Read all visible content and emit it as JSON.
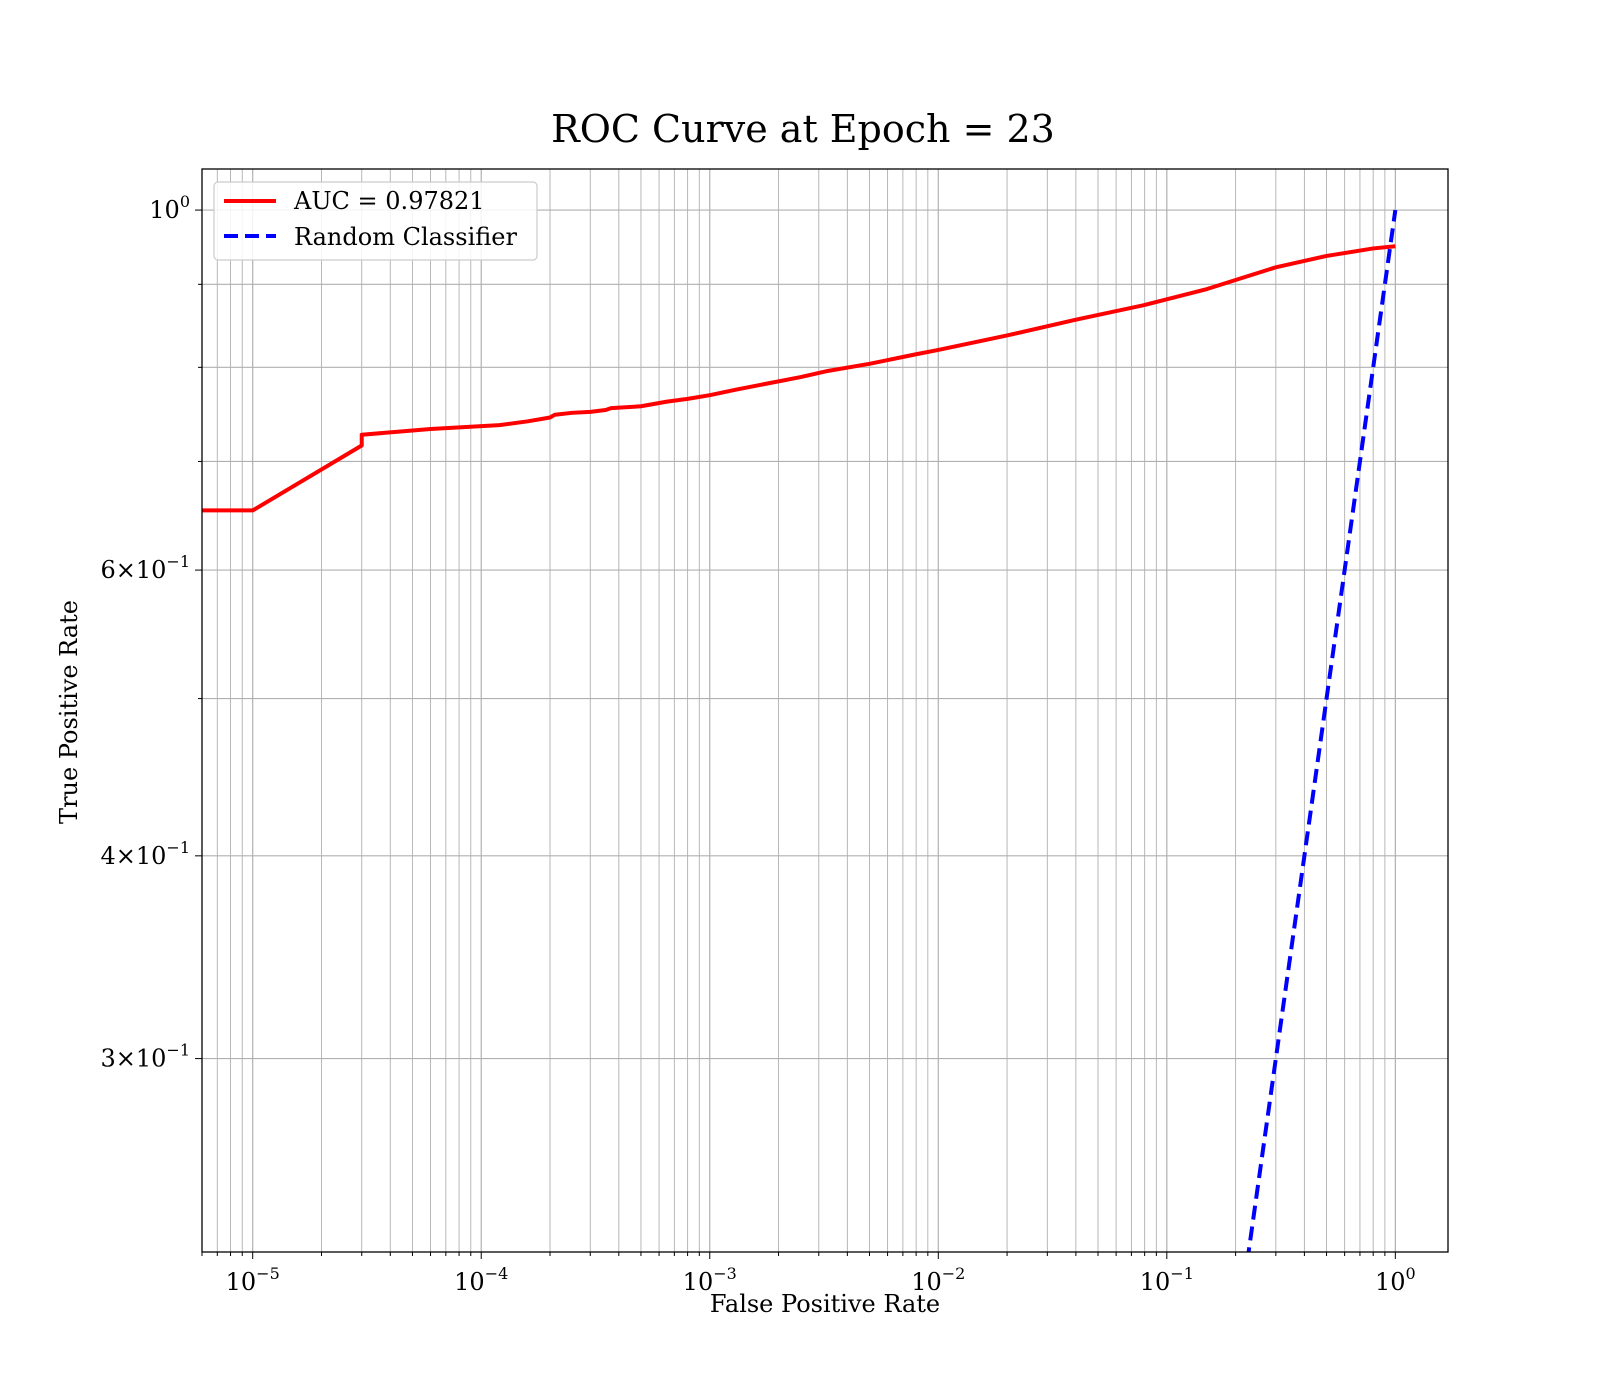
{
  "chart_data": {
    "type": "line",
    "title": "ROC Curve at Epoch = 23",
    "xlabel": "False Positive Rate",
    "ylabel": "True Positive Rate",
    "xscale": "log",
    "yscale": "log",
    "xlim": [
      6e-06,
      1.7
    ],
    "ylim": [
      0.228,
      1.06
    ],
    "grid": "major and minor, both axes",
    "legend_position": "upper left",
    "x_ticks": [
      {
        "value": 1e-05,
        "base": "10",
        "exp": "−5"
      },
      {
        "value": 0.0001,
        "base": "10",
        "exp": "−4"
      },
      {
        "value": 0.001,
        "base": "10",
        "exp": "−3"
      },
      {
        "value": 0.01,
        "base": "10",
        "exp": "−2"
      },
      {
        "value": 0.1,
        "base": "10",
        "exp": "−1"
      },
      {
        "value": 1,
        "base": "10",
        "exp": "0"
      }
    ],
    "y_ticks": [
      {
        "value": 1,
        "base": "10",
        "exp": "0"
      },
      {
        "value": 0.6,
        "base": "6×10",
        "exp": "−1"
      },
      {
        "value": 0.4,
        "base": "4×10",
        "exp": "−1"
      },
      {
        "value": 0.3,
        "base": "3×10",
        "exp": "−1"
      }
    ],
    "series": [
      {
        "name": "AUC = 0.97821",
        "color": "#ff0000",
        "style": "solid",
        "x": [
          6e-06,
          1e-05,
          3e-05,
          3e-05,
          6e-05,
          0.00012,
          0.00016,
          0.0002,
          0.00021,
          0.00025,
          0.0003,
          0.00035,
          0.00037,
          0.0005,
          0.00065,
          0.0008,
          0.001,
          0.0013,
          0.0018,
          0.0025,
          0.0033,
          0.005,
          0.008,
          0.01,
          0.02,
          0.04,
          0.08,
          0.15,
          0.3,
          0.5,
          0.8,
          1.0
        ],
        "y": [
          0.653,
          0.653,
          0.716,
          0.727,
          0.733,
          0.737,
          0.741,
          0.745,
          0.748,
          0.75,
          0.751,
          0.753,
          0.755,
          0.757,
          0.762,
          0.765,
          0.769,
          0.775,
          0.782,
          0.789,
          0.796,
          0.804,
          0.815,
          0.82,
          0.837,
          0.856,
          0.874,
          0.894,
          0.922,
          0.937,
          0.947,
          0.95
        ]
      },
      {
        "name": "Random Classifier",
        "color": "#0000ff",
        "style": "dashed",
        "x": [
          0.2,
          1.0
        ],
        "y": [
          0.2,
          1.0
        ]
      }
    ]
  }
}
